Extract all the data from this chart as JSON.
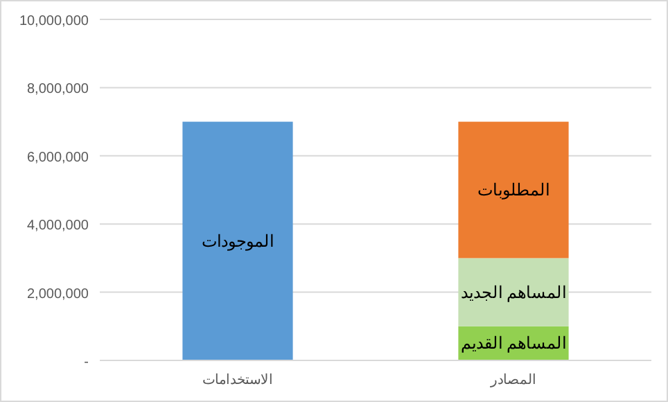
{
  "chart_data": {
    "type": "bar",
    "stacked": true,
    "categories": [
      "الاستخدامات",
      "المصادر"
    ],
    "series": [
      {
        "name": "الموجودات",
        "color": "#5b9bd5",
        "values": [
          7000000,
          null
        ]
      },
      {
        "name": "المساهم القديم",
        "color": "#92d050",
        "values": [
          null,
          1000000
        ]
      },
      {
        "name": "المساهم الجديد",
        "color": "#c5e0b4",
        "values": [
          null,
          2000000
        ]
      },
      {
        "name": "المطلوبات",
        "color": "#ed7d31",
        "values": [
          null,
          4000000
        ]
      }
    ],
    "ylim": [
      0,
      10000000
    ],
    "yticks": [
      {
        "value": 0,
        "label": "-"
      },
      {
        "value": 2000000,
        "label": "2,000,000"
      },
      {
        "value": 4000000,
        "label": "4,000,000"
      },
      {
        "value": 6000000,
        "label": "6,000,000"
      },
      {
        "value": 8000000,
        "label": "8,000,000"
      },
      {
        "value": 10000000,
        "label": "10,000,000"
      }
    ],
    "grid": "y",
    "legend": false
  }
}
